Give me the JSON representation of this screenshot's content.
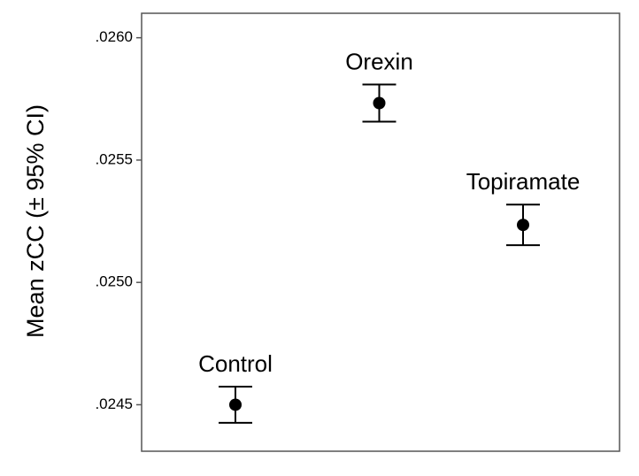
{
  "chart_data": {
    "type": "errorbar",
    "y_label": "Mean zCC (± 95% CI)",
    "categories": [
      "Control",
      "Orexin",
      "Topiramate"
    ],
    "values": [
      0.0245,
      0.025733,
      0.025235
    ],
    "errors": [
      7.4e-05,
      7.6e-05,
      8.3e-05
    ],
    "color": "#000000",
    "ylim": [
      0.02431,
      0.0261
    ],
    "yticks": [
      {
        "value": 0.0245,
        "label": ".0245"
      },
      {
        "value": 0.025,
        "label": ".0250"
      },
      {
        "value": 0.0255,
        "label": ".0255"
      },
      {
        "value": 0.026,
        "label": ".0260"
      }
    ]
  }
}
